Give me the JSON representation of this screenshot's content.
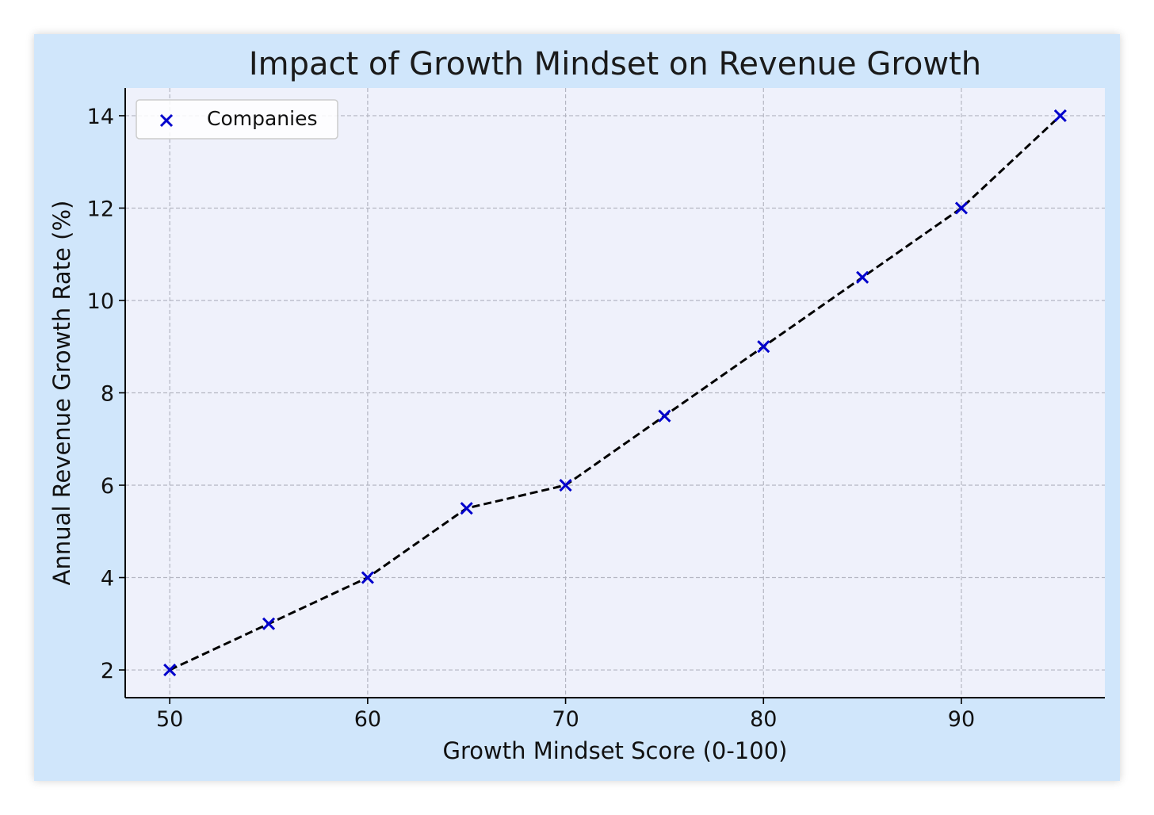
{
  "chart_data": {
    "type": "scatter",
    "title": "Impact of Growth Mindset on Revenue Growth",
    "xlabel": "Growth Mindset Score (0-100)",
    "ylabel": "Annual Revenue Growth Rate (%)",
    "xlim": [
      47.75,
      97.25
    ],
    "ylim": [
      1.4,
      14.6
    ],
    "xticks": [
      50,
      60,
      70,
      80,
      90
    ],
    "yticks": [
      2,
      4,
      6,
      8,
      10,
      12,
      14
    ],
    "grid": true,
    "legend_position": "top-left",
    "series": [
      {
        "name": "Companies",
        "marker": "x",
        "color": "#0000cc",
        "trend_line": {
          "style": "dashed",
          "color": "#000000"
        },
        "x": [
          50,
          55,
          60,
          65,
          70,
          75,
          80,
          85,
          90,
          95
        ],
        "y": [
          2,
          3,
          4,
          5.5,
          6,
          7.5,
          9,
          10.5,
          12,
          14
        ]
      }
    ],
    "colors": {
      "page_background": "#d0e6fb",
      "plot_background": "#eff1fb",
      "grid": "#b4b6c2",
      "marker": "#0000cc",
      "line": "#000000"
    }
  }
}
